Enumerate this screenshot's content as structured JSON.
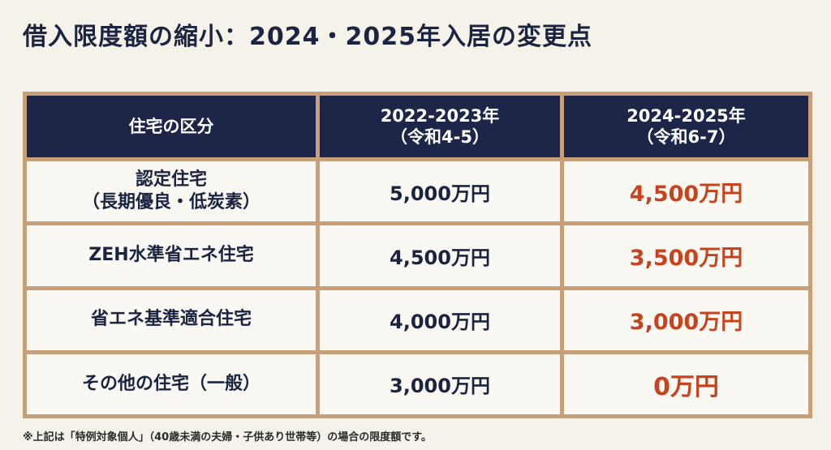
{
  "title": "借入限度額の縮小：2024・2025年入居の変更点",
  "colors": {
    "header_bg": "#1d2649",
    "accent_red": "#c8421e",
    "frame": "#c7a07a",
    "background": "#f5f2ea"
  },
  "table": {
    "headers": [
      {
        "line1": "住宅の区分",
        "line2": ""
      },
      {
        "line1": "2022-2023年",
        "line2": "（令和4-5）"
      },
      {
        "line1": "2024-2025年",
        "line2": "（令和6-7）"
      }
    ],
    "rows": [
      {
        "label_line1": "認定住宅",
        "label_line2": "（長期優良・低炭素）",
        "old": "5,000万円",
        "new": "4,500万円"
      },
      {
        "label_line1": "ZEH水準省エネ住宅",
        "label_line2": "",
        "old": "4,500万円",
        "new": "3,500万円"
      },
      {
        "label_line1": "省エネ基準適合住宅",
        "label_line2": "",
        "old": "4,000万円",
        "new": "3,000万円"
      },
      {
        "label_line1": "その他の住宅（一般）",
        "label_line2": "",
        "old": "3,000万円",
        "new": "0万円"
      }
    ]
  },
  "footnote": "※上記は「特例対象個人」（40歳未満の夫婦・子供あり世帯等）の場合の限度額です。"
}
